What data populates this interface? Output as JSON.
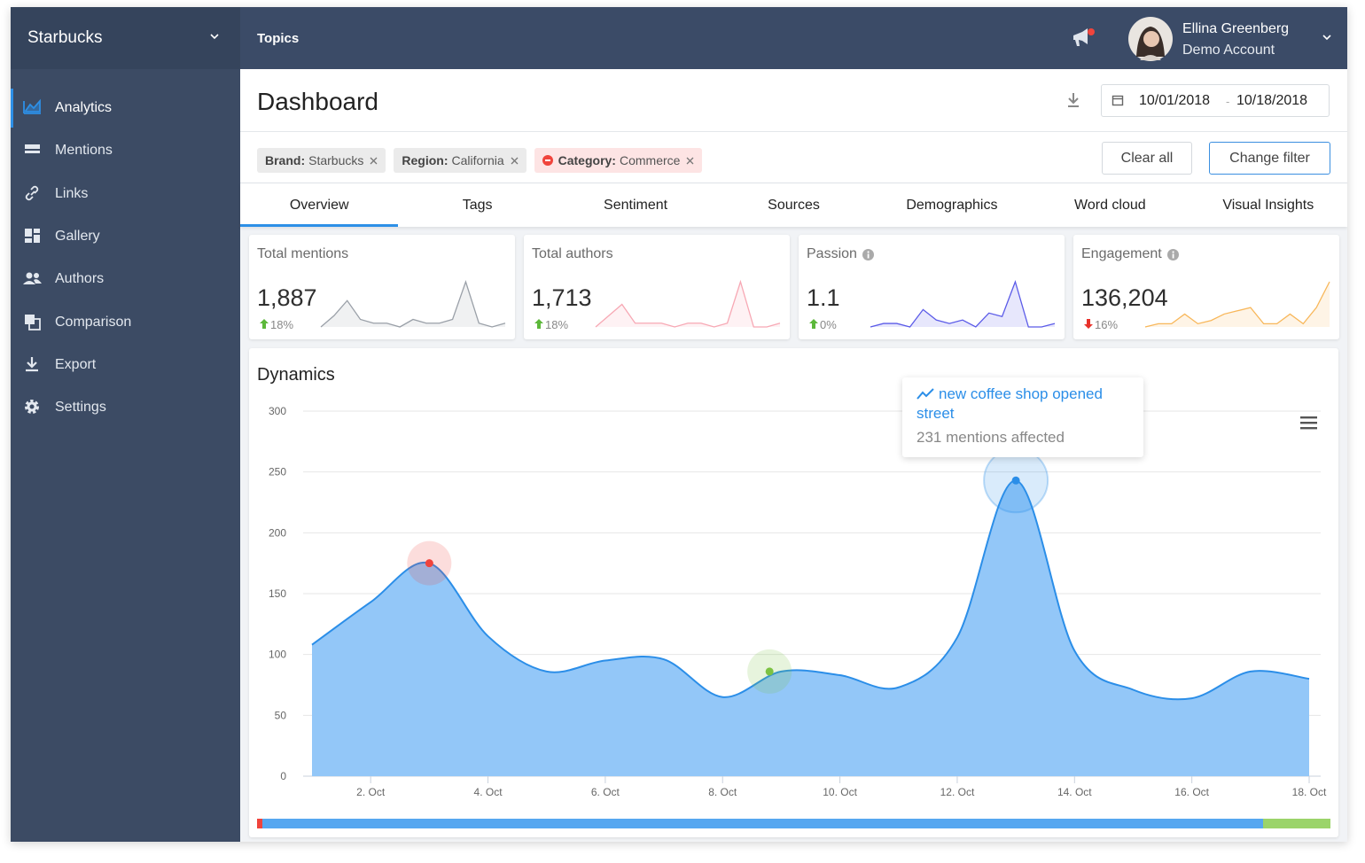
{
  "sidebar": {
    "brand": "Starbucks",
    "menu": [
      "Analytics",
      "Mentions",
      "Links",
      "Gallery",
      "Authors",
      "Comparison",
      "Export",
      "Settings"
    ],
    "active": 0
  },
  "topbar": {
    "section": "Topics",
    "user_name": "Ellina Greenberg",
    "account": "Demo Account"
  },
  "header": {
    "title": "Dashboard",
    "date_from": "10/01/2018",
    "date_separator": "-",
    "date_to": "10/18/2018"
  },
  "filters": [
    {
      "key": "Brand:",
      "value": "Starbucks",
      "excluded": false
    },
    {
      "key": "Region:",
      "value": "California",
      "excluded": false
    },
    {
      "key": "Category:",
      "value": "Commerce",
      "excluded": true
    }
  ],
  "filter_buttons": [
    "Clear all",
    "Change filter"
  ],
  "tabs": [
    "Overview",
    "Tags",
    "Sentiment",
    "Sources",
    "Demographics",
    "Word cloud",
    "Visual Insights"
  ],
  "active_tab": 0,
  "cards": [
    {
      "title": "Total mentions",
      "value": "1,887",
      "change": "18%",
      "direction": "up",
      "info_icon": false,
      "color": "#9aa0a8",
      "spark": [
        2,
        5,
        9,
        4,
        3,
        3,
        2,
        4,
        3,
        3,
        4,
        14,
        3,
        2,
        3
      ]
    },
    {
      "title": "Total authors",
      "value": "1,713",
      "change": "18%",
      "direction": "up",
      "info_icon": false,
      "color": "#f7a8b4",
      "spark": [
        2,
        5,
        8,
        3,
        3,
        3,
        2,
        3,
        3,
        2,
        3,
        14,
        2,
        2,
        3
      ]
    },
    {
      "title": "Passion",
      "value": "1.1",
      "change": "0%",
      "direction": "up",
      "info_icon": true,
      "color": "#5b5be8",
      "spark": [
        1,
        2,
        2,
        1,
        6,
        3,
        2,
        3,
        1,
        5,
        4,
        14,
        1,
        1,
        2
      ]
    },
    {
      "title": "Engagement",
      "value": "136,204",
      "change": "16%",
      "direction": "down",
      "info_icon": true,
      "color": "#f8b75a",
      "spark": [
        0,
        1,
        1,
        4,
        1,
        2,
        4,
        5,
        6,
        1,
        1,
        4,
        1,
        6,
        14
      ]
    }
  ],
  "chart_data": {
    "type": "area",
    "title": "Dynamics",
    "color": "#2b8ee8",
    "fill": "#93c7f8",
    "x": [
      1,
      2,
      3,
      4,
      5,
      6,
      7,
      8,
      9,
      10,
      11,
      12,
      13,
      14,
      15,
      16,
      17,
      18
    ],
    "values": [
      108,
      143,
      175,
      115,
      86,
      95,
      96,
      65,
      86,
      83,
      73,
      114,
      243,
      103,
      71,
      64,
      86,
      80
    ],
    "xlim": [
      1,
      18
    ],
    "xticks": [
      {
        "value": 2,
        "label": "2. Oct"
      },
      {
        "value": 4,
        "label": "4. Oct"
      },
      {
        "value": 6,
        "label": "6. Oct"
      },
      {
        "value": 8,
        "label": "8. Oct"
      },
      {
        "value": 10,
        "label": "10. Oct"
      },
      {
        "value": 12,
        "label": "12. Oct"
      },
      {
        "value": 14,
        "label": "14. Oct"
      },
      {
        "value": 16,
        "label": "16. Oct"
      },
      {
        "value": 18,
        "label": "18. Oct"
      }
    ],
    "ylim": [
      0,
      300
    ],
    "yticks": [
      0,
      50,
      100,
      150,
      200,
      250,
      300
    ],
    "grid": true,
    "markers": [
      {
        "x": 3,
        "value": 175,
        "color": "#f0443c"
      },
      {
        "x": 8.8,
        "value": 86,
        "color": "#7cc242"
      },
      {
        "x": 13,
        "value": 243,
        "color": "#2b8ee8"
      }
    ],
    "annotation": {
      "title": "new coffee shop opened street",
      "text": "231 mentions affected"
    }
  }
}
